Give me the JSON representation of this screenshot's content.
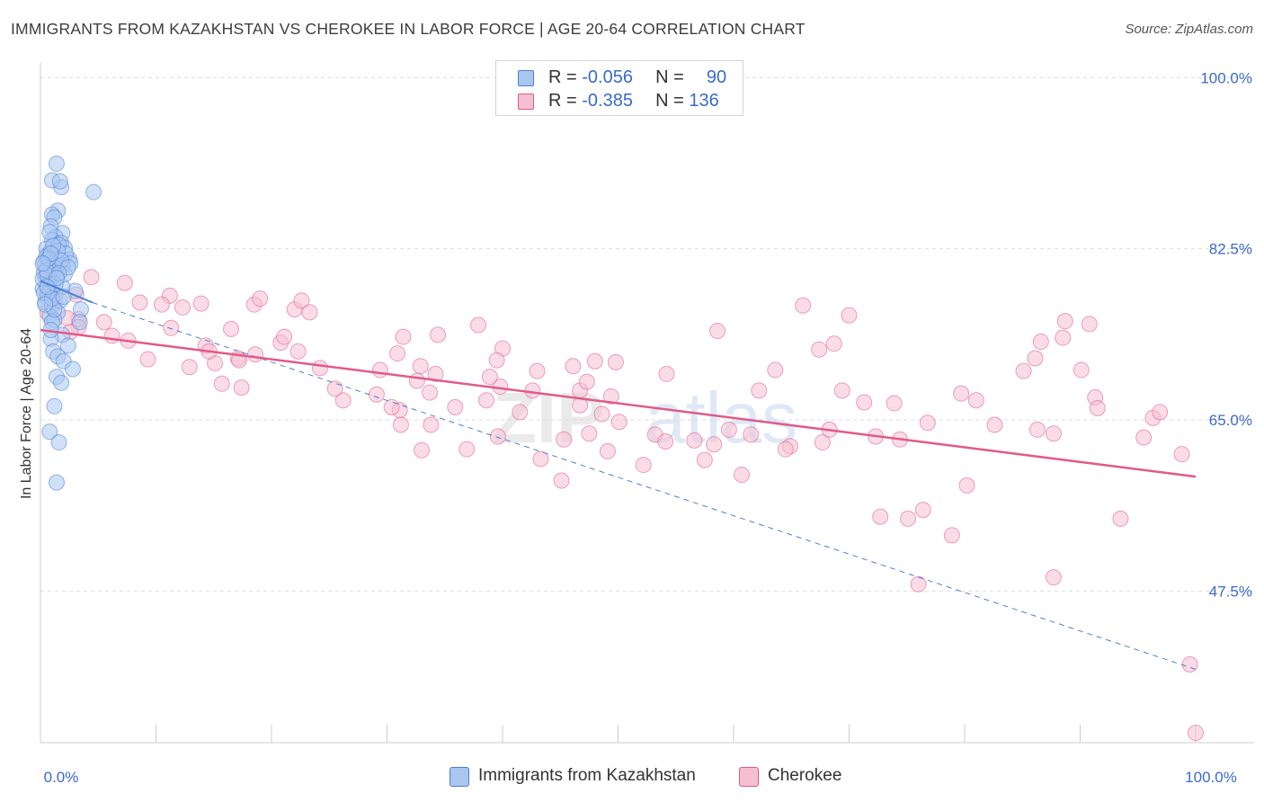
{
  "header": {
    "title": "IMMIGRANTS FROM KAZAKHSTAN VS CHEROKEE IN LABOR FORCE | AGE 20-64 CORRELATION CHART",
    "source": "Source: ZipAtlas.com"
  },
  "watermark": {
    "part1": "ZIP",
    "part2": "atlas"
  },
  "colors": {
    "blue": "#4a7fd4",
    "blue_fill": "#a9c6f0",
    "pink": "#e05a8a",
    "pink_fill": "#f6bfd1",
    "axis_text": "#3a6bc8",
    "grid": "#dddddd"
  },
  "stats_legend": [
    {
      "r_label": "R =",
      "r_value": "-0.056",
      "n_label": "N =",
      "n_value": "90"
    },
    {
      "r_label": "R =",
      "r_value": "-0.385",
      "n_label": "N =",
      "n_value": "136"
    }
  ],
  "bottom_legend": [
    {
      "label": "Immigrants from Kazakhstan"
    },
    {
      "label": "Cherokee"
    }
  ],
  "chart_data": {
    "type": "scatter",
    "title": "IMMIGRANTS FROM KAZAKHSTAN VS CHEROKEE IN LABOR FORCE | AGE 20-64 CORRELATION CHART",
    "xlabel": "",
    "ylabel": "In Labor Force | Age 20-64",
    "xlim": [
      0,
      100
    ],
    "ylim": [
      32,
      101.5
    ],
    "x_tick_labels": [
      {
        "value": 0,
        "label": "0.0%"
      },
      {
        "value": 100,
        "label": "100.0%"
      }
    ],
    "y_tick_labels": [
      {
        "value": 100,
        "label": "100.0%"
      },
      {
        "value": 82.5,
        "label": "82.5%"
      },
      {
        "value": 65,
        "label": "65.0%"
      },
      {
        "value": 47.5,
        "label": "47.5%"
      }
    ],
    "grid": true,
    "series": [
      {
        "name": "Immigrants from Kazakhstan",
        "color": "blue",
        "points": [
          [
            1.4,
            91.2
          ],
          [
            1.8,
            88.8
          ],
          [
            1.0,
            89.5
          ],
          [
            1.7,
            89.4
          ],
          [
            4.6,
            88.3
          ],
          [
            1.5,
            86.4
          ],
          [
            1.0,
            86.0
          ],
          [
            1.2,
            85.7
          ],
          [
            0.9,
            84.8
          ],
          [
            1.9,
            84.1
          ],
          [
            1.3,
            83.7
          ],
          [
            1.0,
            83.4
          ],
          [
            1.8,
            83.1
          ],
          [
            2.1,
            82.6
          ],
          [
            0.5,
            82.5
          ],
          [
            0.8,
            82.1
          ],
          [
            1.2,
            81.8
          ],
          [
            1.5,
            81.5
          ],
          [
            2.5,
            81.4
          ],
          [
            0.3,
            81.2
          ],
          [
            1.0,
            81.0
          ],
          [
            1.9,
            80.8
          ],
          [
            0.6,
            80.6
          ],
          [
            0.9,
            80.4
          ],
          [
            1.1,
            80.2
          ],
          [
            0.7,
            80.0
          ],
          [
            1.4,
            79.8
          ],
          [
            0.4,
            79.6
          ],
          [
            0.9,
            79.3
          ],
          [
            1.1,
            79.0
          ],
          [
            0.5,
            78.7
          ],
          [
            0.2,
            78.4
          ],
          [
            0.8,
            78.1
          ],
          [
            1.3,
            77.8
          ],
          [
            0.6,
            77.5
          ],
          [
            3.0,
            78.2
          ],
          [
            0.4,
            77.0
          ],
          [
            1.0,
            76.6
          ],
          [
            1.5,
            76.0
          ],
          [
            0.8,
            75.6
          ],
          [
            1.2,
            75.2
          ],
          [
            3.5,
            76.3
          ],
          [
            1.0,
            75.0
          ],
          [
            3.4,
            75.0
          ],
          [
            1.9,
            73.7
          ],
          [
            0.9,
            73.3
          ],
          [
            2.4,
            72.6
          ],
          [
            1.1,
            72.0
          ],
          [
            1.5,
            71.5
          ],
          [
            2.0,
            71.0
          ],
          [
            2.8,
            70.2
          ],
          [
            1.4,
            69.4
          ],
          [
            1.8,
            68.8
          ],
          [
            1.2,
            66.4
          ],
          [
            0.8,
            63.8
          ],
          [
            1.6,
            62.7
          ],
          [
            1.4,
            58.6
          ],
          [
            0.6,
            77.9
          ],
          [
            0.3,
            80.1
          ],
          [
            0.5,
            81.7
          ],
          [
            1.6,
            82.9
          ],
          [
            2.2,
            82.0
          ],
          [
            0.7,
            79.0
          ],
          [
            1.9,
            78.6
          ],
          [
            2.6,
            81.0
          ],
          [
            0.4,
            80.9
          ],
          [
            1.3,
            80.5
          ],
          [
            0.2,
            79.4
          ],
          [
            1.7,
            77.2
          ],
          [
            0.9,
            74.2
          ],
          [
            1.2,
            76.3
          ],
          [
            2.1,
            79.9
          ],
          [
            0.8,
            84.2
          ],
          [
            1.5,
            82.3
          ],
          [
            0.6,
            79.8
          ],
          [
            0.3,
            78.0
          ],
          [
            1.0,
            77.4
          ],
          [
            0.5,
            80.3
          ],
          [
            1.8,
            81.3
          ],
          [
            2.4,
            80.6
          ],
          [
            1.1,
            82.8
          ],
          [
            0.7,
            81.5
          ],
          [
            1.3,
            78.9
          ],
          [
            0.4,
            76.8
          ],
          [
            2.0,
            77.6
          ],
          [
            1.6,
            80.0
          ],
          [
            0.9,
            82.0
          ],
          [
            0.2,
            81.0
          ],
          [
            1.4,
            79.5
          ],
          [
            0.6,
            78.6
          ]
        ]
      },
      {
        "name": "Cherokee",
        "color": "pink",
        "points": [
          [
            1.4,
            80.2
          ],
          [
            1.2,
            77.1
          ],
          [
            3.1,
            77.8
          ],
          [
            7.3,
            79.0
          ],
          [
            4.4,
            79.6
          ],
          [
            0.6,
            76.0
          ],
          [
            3.3,
            75.3
          ],
          [
            5.5,
            75.0
          ],
          [
            3.3,
            74.5
          ],
          [
            6.2,
            73.6
          ],
          [
            2.3,
            75.4
          ],
          [
            2.6,
            74.0
          ],
          [
            8.6,
            77.0
          ],
          [
            11.2,
            77.7
          ],
          [
            12.3,
            76.5
          ],
          [
            13.9,
            76.9
          ],
          [
            7.6,
            73.1
          ],
          [
            9.3,
            71.2
          ],
          [
            10.5,
            76.8
          ],
          [
            11.3,
            74.4
          ],
          [
            14.3,
            72.6
          ],
          [
            12.9,
            70.4
          ],
          [
            15.1,
            70.8
          ],
          [
            15.7,
            68.7
          ],
          [
            17.4,
            68.3
          ],
          [
            14.6,
            72.0
          ],
          [
            18.6,
            71.7
          ],
          [
            17.1,
            71.3
          ],
          [
            16.5,
            74.3
          ],
          [
            18.5,
            76.8
          ],
          [
            19.0,
            77.4
          ],
          [
            22.0,
            76.3
          ],
          [
            22.6,
            77.2
          ],
          [
            23.3,
            76.0
          ],
          [
            22.3,
            72.0
          ],
          [
            20.8,
            72.9
          ],
          [
            17.2,
            71.1
          ],
          [
            24.2,
            70.3
          ],
          [
            21.1,
            73.5
          ],
          [
            26.2,
            67.0
          ],
          [
            25.5,
            68.2
          ],
          [
            29.1,
            67.6
          ],
          [
            31.1,
            66.0
          ],
          [
            29.4,
            70.1
          ],
          [
            31.4,
            73.5
          ],
          [
            32.9,
            70.5
          ],
          [
            30.9,
            71.8
          ],
          [
            33.7,
            67.8
          ],
          [
            34.2,
            69.7
          ],
          [
            33.0,
            61.9
          ],
          [
            30.4,
            66.3
          ],
          [
            33.8,
            64.5
          ],
          [
            32.6,
            69.0
          ],
          [
            35.9,
            66.3
          ],
          [
            34.4,
            73.7
          ],
          [
            31.2,
            64.5
          ],
          [
            38.6,
            67.0
          ],
          [
            39.6,
            63.3
          ],
          [
            39.8,
            68.4
          ],
          [
            38.9,
            69.4
          ],
          [
            37.9,
            74.7
          ],
          [
            36.9,
            62.0
          ],
          [
            41.5,
            65.8
          ],
          [
            40.0,
            72.3
          ],
          [
            42.6,
            68.0
          ],
          [
            43.0,
            70.0
          ],
          [
            39.5,
            71.1
          ],
          [
            45.3,
            63.0
          ],
          [
            45.1,
            58.8
          ],
          [
            46.1,
            70.5
          ],
          [
            46.7,
            68.0
          ],
          [
            43.3,
            61.0
          ],
          [
            46.7,
            66.5
          ],
          [
            47.3,
            68.9
          ],
          [
            47.5,
            63.6
          ],
          [
            48.0,
            71.0
          ],
          [
            49.8,
            70.9
          ],
          [
            48.6,
            65.6
          ],
          [
            49.1,
            61.8
          ],
          [
            49.4,
            67.4
          ],
          [
            50.1,
            64.8
          ],
          [
            52.2,
            60.4
          ],
          [
            53.2,
            63.5
          ],
          [
            54.1,
            62.8
          ],
          [
            54.2,
            69.7
          ],
          [
            56.6,
            62.9
          ],
          [
            57.5,
            60.9
          ],
          [
            58.3,
            62.5
          ],
          [
            58.6,
            74.1
          ],
          [
            59.6,
            64.0
          ],
          [
            61.5,
            63.5
          ],
          [
            62.2,
            68.0
          ],
          [
            63.6,
            70.1
          ],
          [
            66.0,
            76.7
          ],
          [
            64.9,
            62.3
          ],
          [
            67.7,
            62.7
          ],
          [
            67.4,
            72.2
          ],
          [
            69.4,
            68.0
          ],
          [
            68.3,
            64.0
          ],
          [
            68.7,
            72.8
          ],
          [
            70.0,
            75.7
          ],
          [
            71.3,
            66.8
          ],
          [
            72.3,
            63.3
          ],
          [
            72.7,
            55.1
          ],
          [
            73.9,
            66.7
          ],
          [
            74.4,
            63.0
          ],
          [
            75.1,
            54.9
          ],
          [
            76.0,
            48.2
          ],
          [
            76.4,
            55.8
          ],
          [
            76.8,
            64.7
          ],
          [
            80.2,
            58.3
          ],
          [
            79.7,
            67.7
          ],
          [
            78.9,
            53.2
          ],
          [
            81.0,
            67.0
          ],
          [
            82.6,
            64.5
          ],
          [
            85.1,
            70.0
          ],
          [
            86.3,
            64.0
          ],
          [
            86.6,
            73.0
          ],
          [
            87.7,
            63.6
          ],
          [
            88.5,
            73.4
          ],
          [
            86.1,
            71.3
          ],
          [
            88.7,
            75.1
          ],
          [
            90.1,
            70.1
          ],
          [
            90.8,
            74.8
          ],
          [
            91.3,
            67.3
          ],
          [
            91.5,
            66.2
          ],
          [
            93.5,
            54.9
          ],
          [
            96.3,
            65.2
          ],
          [
            96.9,
            65.8
          ],
          [
            98.8,
            61.5
          ],
          [
            100.0,
            33.0
          ],
          [
            99.5,
            40.0
          ],
          [
            87.7,
            48.9
          ],
          [
            95.5,
            63.2
          ],
          [
            64.5,
            62.0
          ],
          [
            60.7,
            59.4
          ]
        ]
      }
    ],
    "trend_lines": [
      {
        "series": "Immigrants from Kazakhstan",
        "solid": [
          [
            0,
            79.2
          ],
          [
            4.5,
            77.0
          ]
        ],
        "dashed": [
          [
            4.5,
            77.0
          ],
          [
            100,
            39.5
          ]
        ]
      },
      {
        "series": "Cherokee",
        "solid": [
          [
            0,
            74.2
          ],
          [
            100,
            59.2
          ]
        ]
      }
    ]
  }
}
